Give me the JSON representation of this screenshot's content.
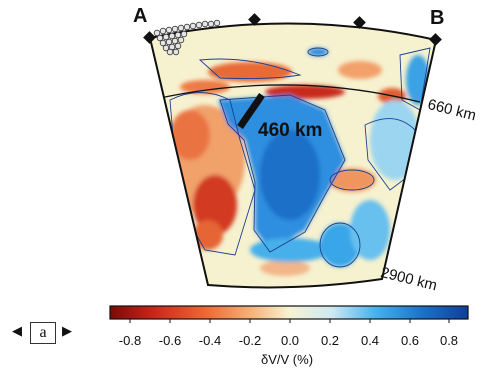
{
  "labels": {
    "point_a": "A",
    "point_b": "B",
    "depth_660": "660 km",
    "depth_2900": "2900 km",
    "distance": "460 km"
  },
  "colorbar": {
    "ticks": [
      "-0.8",
      "-0.6",
      "-0.4",
      "-0.2",
      "0.0",
      "0.2",
      "0.4",
      "0.6",
      "0.8"
    ],
    "label": "δV/V (%)",
    "colors": [
      "#7a0a08",
      "#c9251a",
      "#ee6a34",
      "#f6b57c",
      "#f7f3d3",
      "#cfe8f2",
      "#46b3ee",
      "#1c73c9",
      "#0d3f9a"
    ]
  },
  "nav": {
    "prev_icon": "triangle-left-icon",
    "next_icon": "triangle-right-icon",
    "panel_label": "a"
  }
}
